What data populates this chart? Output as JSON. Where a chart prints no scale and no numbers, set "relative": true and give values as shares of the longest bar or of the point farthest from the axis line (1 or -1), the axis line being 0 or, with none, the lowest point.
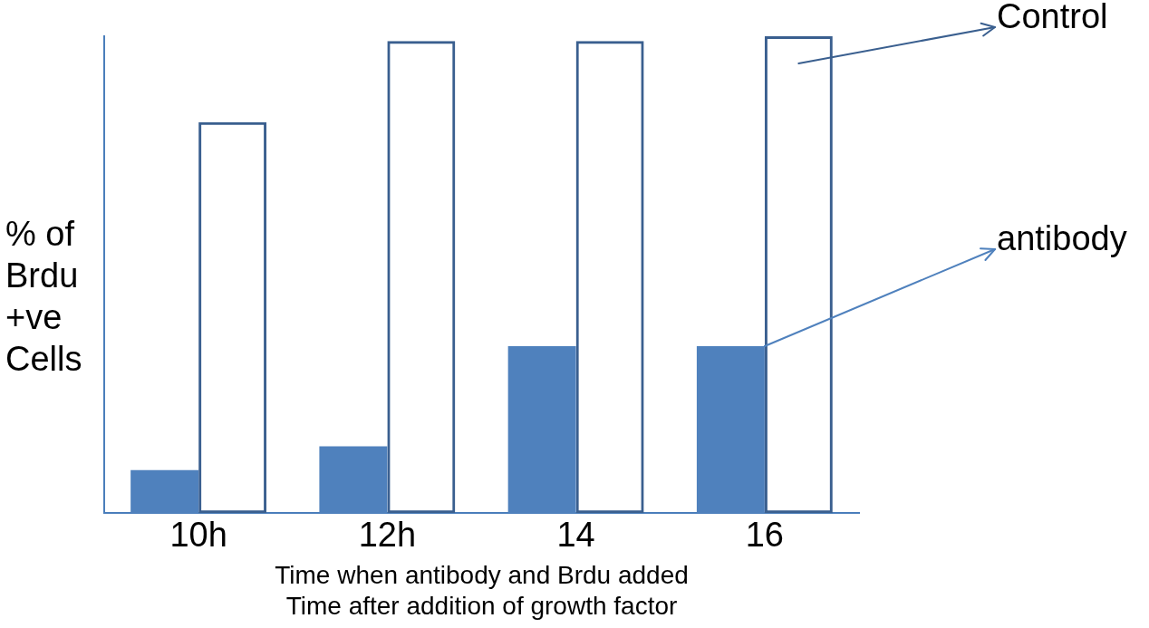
{
  "chart_data": {
    "type": "bar",
    "relative": true,
    "categories": [
      "10h",
      "12h",
      "14",
      "16"
    ],
    "series": [
      {
        "name": "antibody",
        "color": "#4f81bd",
        "values": [
          0.09,
          0.14,
          0.35,
          0.35
        ]
      },
      {
        "name": "Control",
        "color": "#3a5f8f",
        "values": [
          0.82,
          0.99,
          0.99,
          1
        ]
      }
    ],
    "xlabel": "Time when antibody and Brdu added",
    "ylabel": "% of Brdu +ve Cells",
    "annotations": [
      "Time after addition of growth factor"
    ],
    "legend": "right",
    "grid": false
  }
}
